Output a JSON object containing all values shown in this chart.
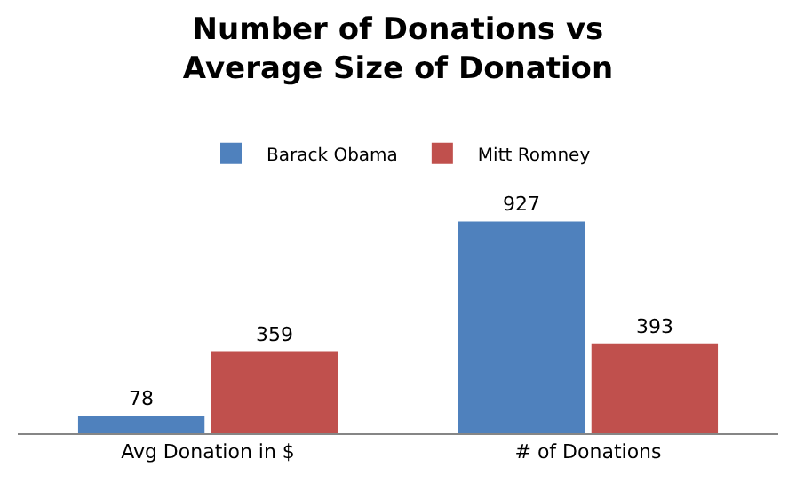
{
  "chart_data": {
    "type": "bar",
    "title": "Number of Donations vs\nAverage Size of Donation",
    "categories": [
      "Avg Donation in $",
      "# of Donations"
    ],
    "series": [
      {
        "name": "Barack Obama",
        "color": "#4f81bd",
        "values": [
          78,
          927
        ]
      },
      {
        "name": "Mitt Romney",
        "color": "#c0504d",
        "values": [
          359,
          393
        ]
      }
    ],
    "data_labels": true,
    "legend": "top"
  }
}
